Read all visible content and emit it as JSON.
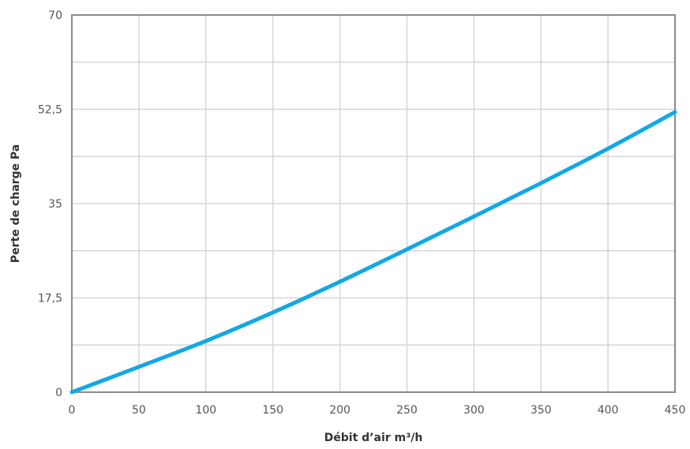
{
  "chart_data": {
    "type": "line",
    "title": "",
    "xlabel": "Débit d’air m³/h",
    "ylabel": "Perte de charge Pa",
    "xlim": [
      0,
      450
    ],
    "ylim": [
      0,
      70
    ],
    "x_ticks": [
      "0",
      "50",
      "100",
      "150",
      "200",
      "250",
      "300",
      "350",
      "400",
      "450"
    ],
    "y_ticks": [
      "0",
      "17,5",
      "35",
      "52,5",
      "70"
    ],
    "grid": true,
    "legend": "none",
    "series": [
      {
        "color": "#12a8e4",
        "x": [
          0,
          50,
          100,
          150,
          200,
          250,
          300,
          350,
          400,
          450
        ],
        "y": [
          0,
          4.7,
          9.5,
          14.8,
          20.5,
          26.5,
          32.6,
          38.8,
          45.2,
          52.0
        ]
      }
    ]
  },
  "colors": {
    "line": "#12a8e4",
    "grid": "#d6d6d6",
    "frame": "#8a8a8a"
  }
}
